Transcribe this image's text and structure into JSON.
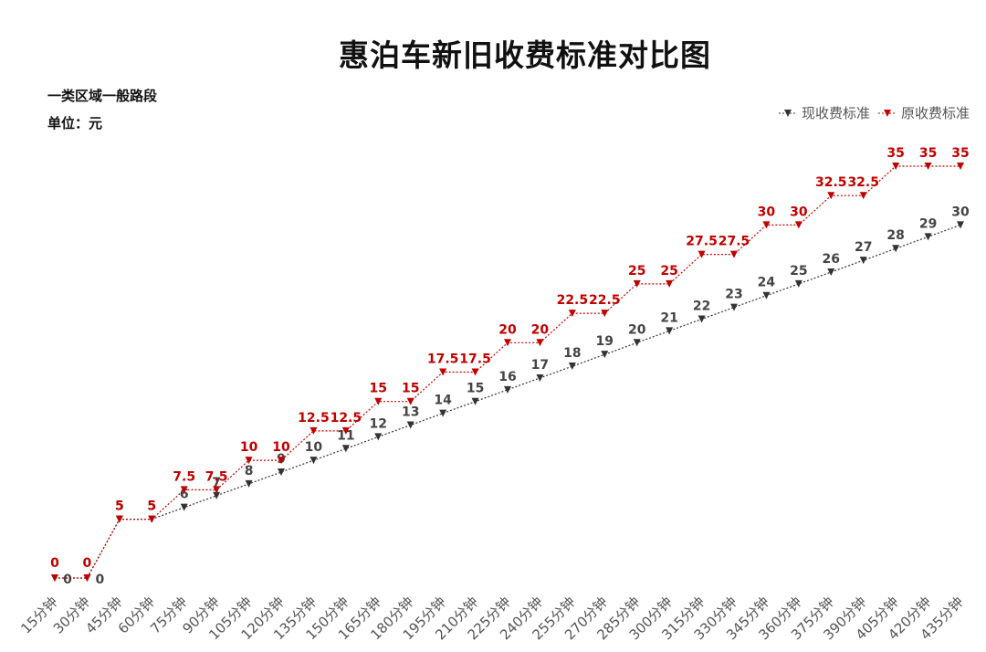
{
  "title": "惠泊车新旧收费标准对比图",
  "notes": {
    "area": "一类区域一般路段",
    "unit": "单位：元"
  },
  "colors": {
    "current": "#333333",
    "original": "#c00000"
  },
  "chart_data": {
    "type": "line",
    "categories": [
      "15分钟",
      "30分钟",
      "45分钟",
      "60分钟",
      "75分钟",
      "90分钟",
      "105分钟",
      "120分钟",
      "135分钟",
      "150分钟",
      "165分钟",
      "180分钟",
      "195分钟",
      "210分钟",
      "225分钟",
      "240分钟",
      "255分钟",
      "270分钟",
      "285分钟",
      "300分钟",
      "315分钟",
      "330分钟",
      "345分钟",
      "360分钟",
      "375分钟",
      "390分钟",
      "405分钟",
      "420分钟",
      "435分钟"
    ],
    "series": [
      {
        "name": "现收费标准",
        "color": "#333333",
        "values": [
          0,
          0,
          5,
          5,
          6,
          7,
          8,
          9,
          10,
          11,
          12,
          13,
          14,
          15,
          16,
          17,
          18,
          19,
          20,
          21,
          22,
          23,
          24,
          25,
          26,
          27,
          28,
          29,
          30
        ]
      },
      {
        "name": "原收费标准",
        "color": "#c00000",
        "values": [
          0,
          0,
          5,
          5,
          7.5,
          7.5,
          10,
          10,
          12.5,
          12.5,
          15,
          15,
          17.5,
          17.5,
          20,
          20,
          22.5,
          22.5,
          25,
          25,
          27.5,
          27.5,
          30,
          30,
          32.5,
          32.5,
          35,
          35,
          35
        ]
      }
    ],
    "ylim": [
      0,
      35
    ],
    "grid": false,
    "legend_position": "top-right",
    "marker": "triangle-down",
    "line_style": "dotted"
  }
}
